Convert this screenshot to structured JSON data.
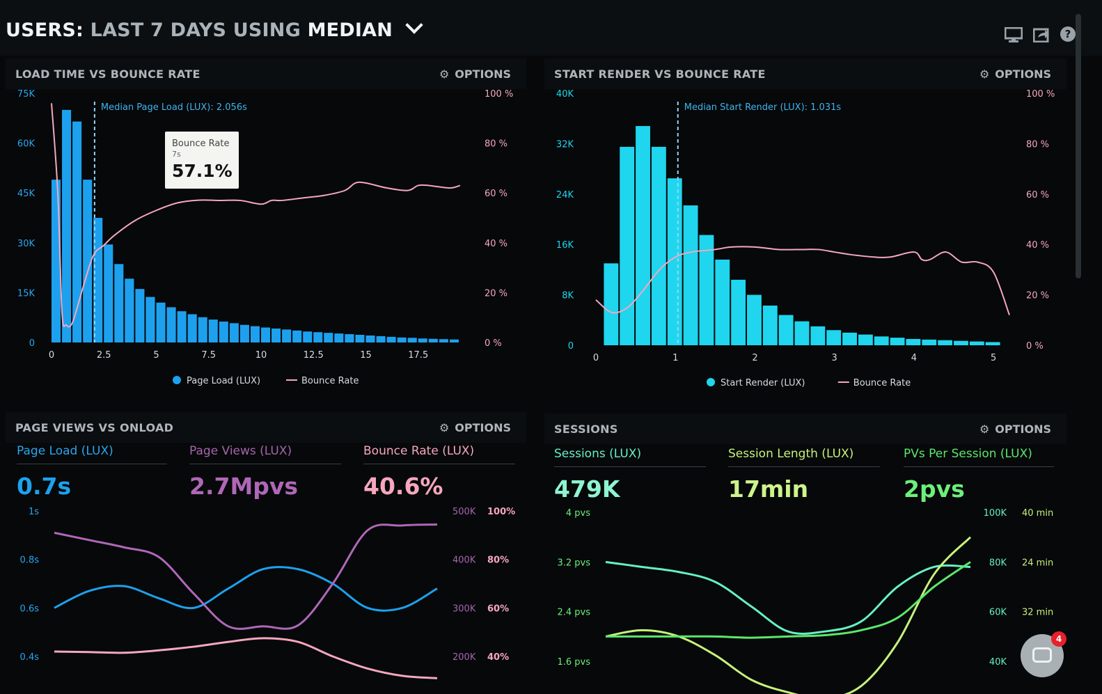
{
  "header": {
    "title_users": "USERS:",
    "title_range": "LAST 7 DAYS",
    "title_using": "USING",
    "title_metric": "MEDIAN",
    "icons": [
      "monitor-icon",
      "share-icon",
      "help-icon"
    ]
  },
  "colors": {
    "blue": "#1da1ee",
    "cyan": "#1fd6ee",
    "pink": "#f6a7bd",
    "purple": "#b067b7",
    "mint": "#66f0c4",
    "lime": "#c7f27a",
    "green": "#5be86a"
  },
  "options_label": "OPTIONS",
  "panel1": {
    "title": "LOAD TIME VS BOUNCE RATE",
    "median_label": "Median Page Load (LUX): 2.056s",
    "tooltip": {
      "title": "Bounce Rate",
      "x": "7s",
      "value": "57.1%"
    },
    "legend": {
      "bars": "Page Load (LUX)",
      "line": "Bounce Rate"
    }
  },
  "panel2": {
    "title": "START RENDER VS BOUNCE RATE",
    "median_label": "Median Start Render (LUX): 1.031s",
    "legend": {
      "bars": "Start Render (LUX)",
      "line": "Bounce Rate"
    }
  },
  "panel3": {
    "title": "PAGE VIEWS VS ONLOAD",
    "metrics": [
      {
        "label": "Page Load (LUX)",
        "value": "0.7s"
      },
      {
        "label": "Page Views (LUX)",
        "value": "2.7Mpvs"
      },
      {
        "label": "Bounce Rate (LUX)",
        "value": "40.6%"
      }
    ]
  },
  "panel4": {
    "title": "SESSIONS",
    "metrics": [
      {
        "label": "Sessions (LUX)",
        "value": "479K"
      },
      {
        "label": "Session Length (LUX)",
        "value": "17min"
      },
      {
        "label": "PVs Per Session (LUX)",
        "value": "2pvs"
      }
    ]
  },
  "chat": {
    "badge": "4"
  },
  "chart_data": [
    {
      "type": "bar",
      "title": "LOAD TIME VS BOUNCE RATE",
      "x_ticks": [
        "0",
        "2.5",
        "5",
        "7.5",
        "10",
        "12.5",
        "15",
        "17.5"
      ],
      "xlim": [
        0,
        20
      ],
      "y_left_ticks": [
        "0",
        "15K",
        "30K",
        "45K",
        "60K",
        "75K"
      ],
      "ylim_left": [
        0,
        75000
      ],
      "y_right_ticks": [
        "0 %",
        "20 %",
        "40 %",
        "60 %",
        "80 %",
        "100 %"
      ],
      "ylim_right": [
        0,
        100
      ],
      "median_x": 2.056,
      "bar_width": 0.5,
      "series": [
        {
          "name": "Page Load (LUX)",
          "kind": "bar",
          "color": "#1da1ee",
          "x": [
            0,
            0.5,
            1,
            1.5,
            2,
            2.5,
            3,
            3.5,
            4,
            4.5,
            5,
            5.5,
            6,
            6.5,
            7,
            7.5,
            8,
            8.5,
            9,
            9.5,
            10,
            10.5,
            11,
            11.5,
            12,
            12.5,
            13,
            13.5,
            14,
            14.5,
            15,
            15.5,
            16,
            16.5,
            17,
            17.5,
            18,
            18.5,
            19
          ],
          "values": [
            49000,
            70000,
            66500,
            49000,
            37500,
            29500,
            23600,
            19200,
            16100,
            13700,
            12000,
            10600,
            9400,
            8500,
            7600,
            6900,
            6300,
            5800,
            5300,
            4900,
            4500,
            4200,
            3900,
            3600,
            3300,
            3100,
            2900,
            2700,
            2500,
            2300,
            2100,
            1900,
            1700,
            1500,
            1400,
            1200,
            1100,
            1000,
            900
          ]
        },
        {
          "name": "Bounce Rate",
          "kind": "line",
          "color": "#f6a7bd",
          "x": [
            0,
            0.3,
            0.5,
            0.7,
            1,
            1.5,
            2,
            2.5,
            3,
            4,
            5,
            6,
            7,
            8,
            9,
            10,
            10.5,
            11,
            12,
            13,
            14,
            14.5,
            15,
            16,
            17,
            17.5,
            18,
            19,
            19.5
          ],
          "values": [
            96,
            60,
            12,
            7,
            8,
            22,
            35,
            39,
            43,
            49,
            53,
            56,
            57.1,
            57,
            57,
            55.5,
            57,
            57,
            58,
            59,
            61,
            64,
            64,
            62,
            61,
            63,
            63,
            62,
            63
          ]
        }
      ]
    },
    {
      "type": "bar",
      "title": "START RENDER VS BOUNCE RATE",
      "x_ticks": [
        "0",
        "1",
        "2",
        "3",
        "4",
        "5"
      ],
      "xlim": [
        0,
        5.2
      ],
      "y_left_ticks": [
        "0",
        "8K",
        "16K",
        "24K",
        "32K",
        "40K"
      ],
      "ylim_left": [
        0,
        40000
      ],
      "y_right_ticks": [
        "0 %",
        "20 %",
        "40 %",
        "60 %",
        "80 %",
        "100 %"
      ],
      "ylim_right": [
        0,
        100
      ],
      "median_x": 1.031,
      "bar_width": 0.2,
      "series": [
        {
          "name": "Start Render (LUX)",
          "kind": "bar",
          "color": "#1fd6ee",
          "x": [
            0.1,
            0.3,
            0.5,
            0.7,
            0.9,
            1.1,
            1.3,
            1.5,
            1.7,
            1.9,
            2.1,
            2.3,
            2.5,
            2.7,
            2.9,
            3.1,
            3.3,
            3.5,
            3.7,
            3.9,
            4.1,
            4.3,
            4.5,
            4.7,
            4.9
          ],
          "values": [
            13000,
            31500,
            34800,
            31500,
            26500,
            22200,
            17500,
            13600,
            10400,
            8000,
            6300,
            4800,
            3800,
            3000,
            2400,
            2000,
            1700,
            1400,
            1200,
            1000,
            900,
            800,
            700,
            600,
            500
          ]
        },
        {
          "name": "Bounce Rate",
          "kind": "line",
          "color": "#f6a7bd",
          "x": [
            0,
            0.2,
            0.4,
            0.6,
            0.8,
            1,
            1.2,
            1.5,
            1.7,
            2,
            2.3,
            2.6,
            2.8,
            3,
            3.2,
            3.5,
            3.7,
            4,
            4.1,
            4.2,
            4.4,
            4.6,
            4.8,
            5,
            5.2
          ],
          "values": [
            18,
            13,
            15,
            22,
            30,
            35,
            37,
            38,
            39,
            39,
            38,
            38,
            38,
            37,
            36,
            35,
            35,
            37,
            34,
            34,
            37,
            33,
            33,
            29,
            12
          ]
        }
      ]
    },
    {
      "type": "line",
      "title": "PAGE VIEWS VS ONLOAD",
      "x": [
        0,
        1,
        2,
        3,
        4,
        5,
        6,
        7,
        8,
        9,
        10,
        11
      ],
      "y_left_ticks": [
        "0.4s",
        "0.6s",
        "0.8s",
        "1s"
      ],
      "ylim_left_s": [
        0.4,
        1.0
      ],
      "y_right_ticks_views": [
        "200K",
        "300K",
        "400K",
        "500K"
      ],
      "ylim_views": [
        200000,
        500000
      ],
      "y_right_ticks_bounce": [
        "40%",
        "60%",
        "80%",
        "100%"
      ],
      "ylim_bounce": [
        40,
        100
      ],
      "series": [
        {
          "name": "Page Load (LUX)",
          "axis": "s",
          "color": "#1da1ee",
          "values": [
            0.6,
            0.67,
            0.69,
            0.64,
            0.6,
            0.68,
            0.76,
            0.76,
            0.7,
            0.6,
            0.6,
            0.68
          ]
        },
        {
          "name": "Page Views (LUX)",
          "axis": "views",
          "color": "#b067b7",
          "values": [
            455000,
            440000,
            425000,
            405000,
            330000,
            262000,
            262000,
            264000,
            350000,
            460000,
            470000,
            472000
          ]
        },
        {
          "name": "Bounce Rate (LUX)",
          "axis": "bounce",
          "color": "#f6a7bd",
          "values": [
            42,
            41.8,
            41.5,
            42.5,
            44,
            46,
            47.5,
            46,
            40,
            35,
            32,
            31
          ]
        }
      ]
    },
    {
      "type": "line",
      "title": "SESSIONS",
      "x": [
        0,
        1,
        2,
        3,
        4,
        5,
        6,
        7,
        8,
        9,
        10
      ],
      "y_left_ticks": [
        "1.6 pvs",
        "2.4 pvs",
        "3.2 pvs",
        "4 pvs"
      ],
      "ylim_left": [
        1.6,
        4.0
      ],
      "y_right_ticks_sessions": [
        "40K",
        "60K",
        "80K",
        "100K"
      ],
      "ylim_sessions": [
        40000,
        100000
      ],
      "y_right_ticks_length": [
        "40 min",
        "32 min",
        "24 min",
        "40 min"
      ],
      "series": [
        {
          "name": "Sessions (LUX)",
          "color": "#66f0c4",
          "values": [
            80000,
            78000,
            76000,
            72000,
            62000,
            52000,
            52000,
            56000,
            70000,
            78000,
            78000
          ]
        },
        {
          "name": "Session Length (LUX)",
          "color": "#c7f27a",
          "values": [
            2.0,
            2.1,
            2.0,
            1.7,
            1.3,
            1.1,
            1.0,
            1.2,
            1.9,
            3.0,
            3.6
          ]
        },
        {
          "name": "PVs Per Session (LUX)",
          "color": "#5be86a",
          "values": [
            2.0,
            2.0,
            2.0,
            2.0,
            1.98,
            2.0,
            2.02,
            2.1,
            2.3,
            2.8,
            3.2
          ]
        }
      ]
    }
  ]
}
